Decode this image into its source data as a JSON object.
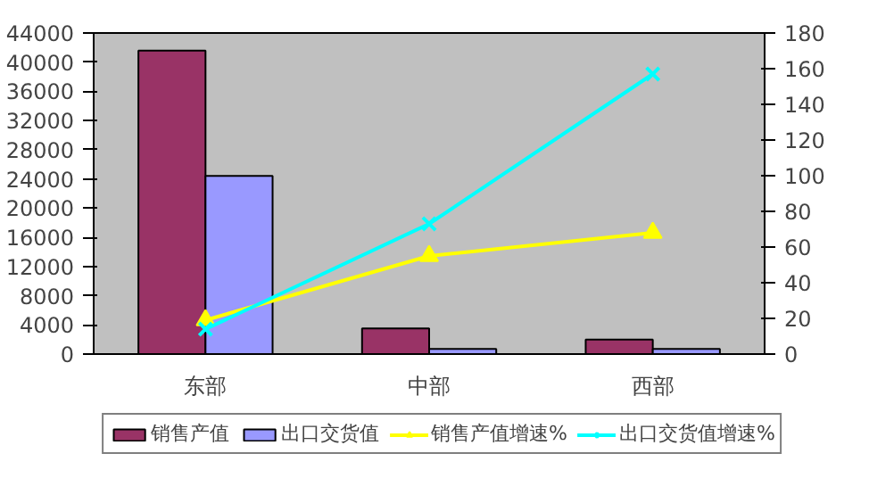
{
  "chart_data": {
    "type": "bar",
    "categories": [
      "东部",
      "中部",
      "西部"
    ],
    "series": [
      {
        "name": "销售产值",
        "color": "#993366",
        "values": [
          41600,
          3500,
          2000
        ]
      },
      {
        "name": "出口交货值",
        "color": "#9999ff",
        "values": [
          24400,
          700,
          700
        ]
      },
      {
        "name": "销售产值增速%",
        "type": "line",
        "axis": "y2",
        "marker": "triangle",
        "color": "#ffff00",
        "values": [
          19,
          55,
          68
        ]
      },
      {
        "name": "出口交货值增速%",
        "type": "line",
        "axis": "y2",
        "marker": "cross",
        "color": "#00ffff",
        "values": [
          14,
          73,
          157
        ]
      }
    ],
    "ylim": [
      0,
      44000
    ],
    "yticks": [
      0,
      4000,
      8000,
      12000,
      16000,
      20000,
      24000,
      28000,
      32000,
      36000,
      40000,
      44000
    ],
    "y2lim": [
      0,
      180
    ],
    "y2ticks": [
      0,
      20,
      40,
      60,
      80,
      100,
      120,
      140,
      160,
      180
    ],
    "grid": false,
    "legend": "bottom"
  }
}
